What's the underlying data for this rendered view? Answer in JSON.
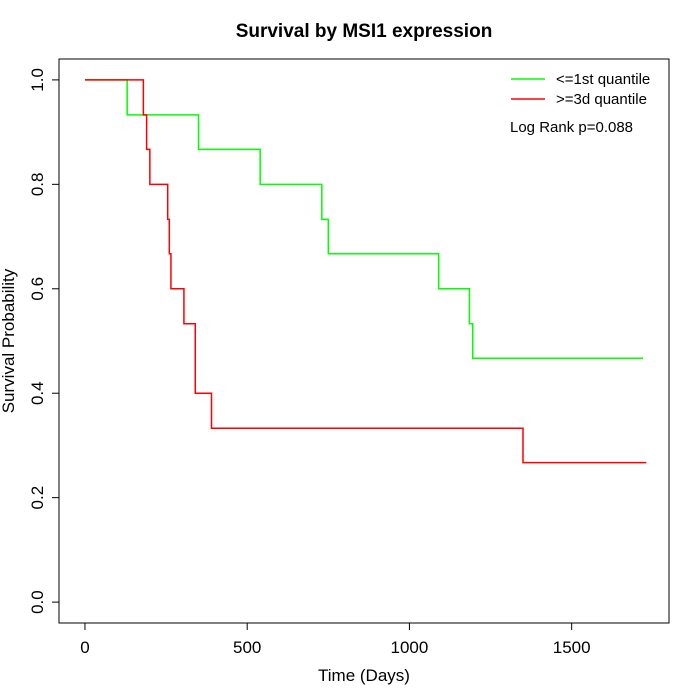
{
  "chart_data": {
    "type": "line",
    "title": "Survival by MSI1 expression",
    "xlabel": "Time (Days)",
    "ylabel": "Survival Probability",
    "xlim": [
      -80,
      1800
    ],
    "ylim": [
      -0.04,
      1.04
    ],
    "x_ticks": [
      0,
      500,
      1000,
      1500
    ],
    "y_ticks": [
      0.0,
      0.2,
      0.4,
      0.6,
      0.8,
      1.0
    ],
    "x_tick_labels": [
      "0",
      "500",
      "1000",
      "1500"
    ],
    "y_tick_labels": [
      "0.0",
      "0.2",
      "0.4",
      "0.6",
      "0.8",
      "1.0"
    ],
    "grid": false,
    "legend_position": "top-right",
    "annotation": "Log Rank p=0.088",
    "series": [
      {
        "name": "<=1st quantile",
        "color": "#00ff00",
        "step": true,
        "x": [
          0,
          130,
          350,
          540,
          730,
          750,
          1090,
          1185,
          1195,
          1720
        ],
        "y": [
          1.0,
          0.933,
          0.867,
          0.8,
          0.733,
          0.667,
          0.6,
          0.533,
          0.467,
          0.467
        ]
      },
      {
        "name": ">=3d quantile",
        "color": "#ff0000",
        "step": true,
        "x": [
          0,
          180,
          190,
          200,
          255,
          260,
          265,
          305,
          340,
          390,
          1350,
          1730
        ],
        "y": [
          1.0,
          0.933,
          0.867,
          0.8,
          0.733,
          0.667,
          0.6,
          0.533,
          0.4,
          0.333,
          0.267,
          0.267
        ]
      }
    ]
  }
}
